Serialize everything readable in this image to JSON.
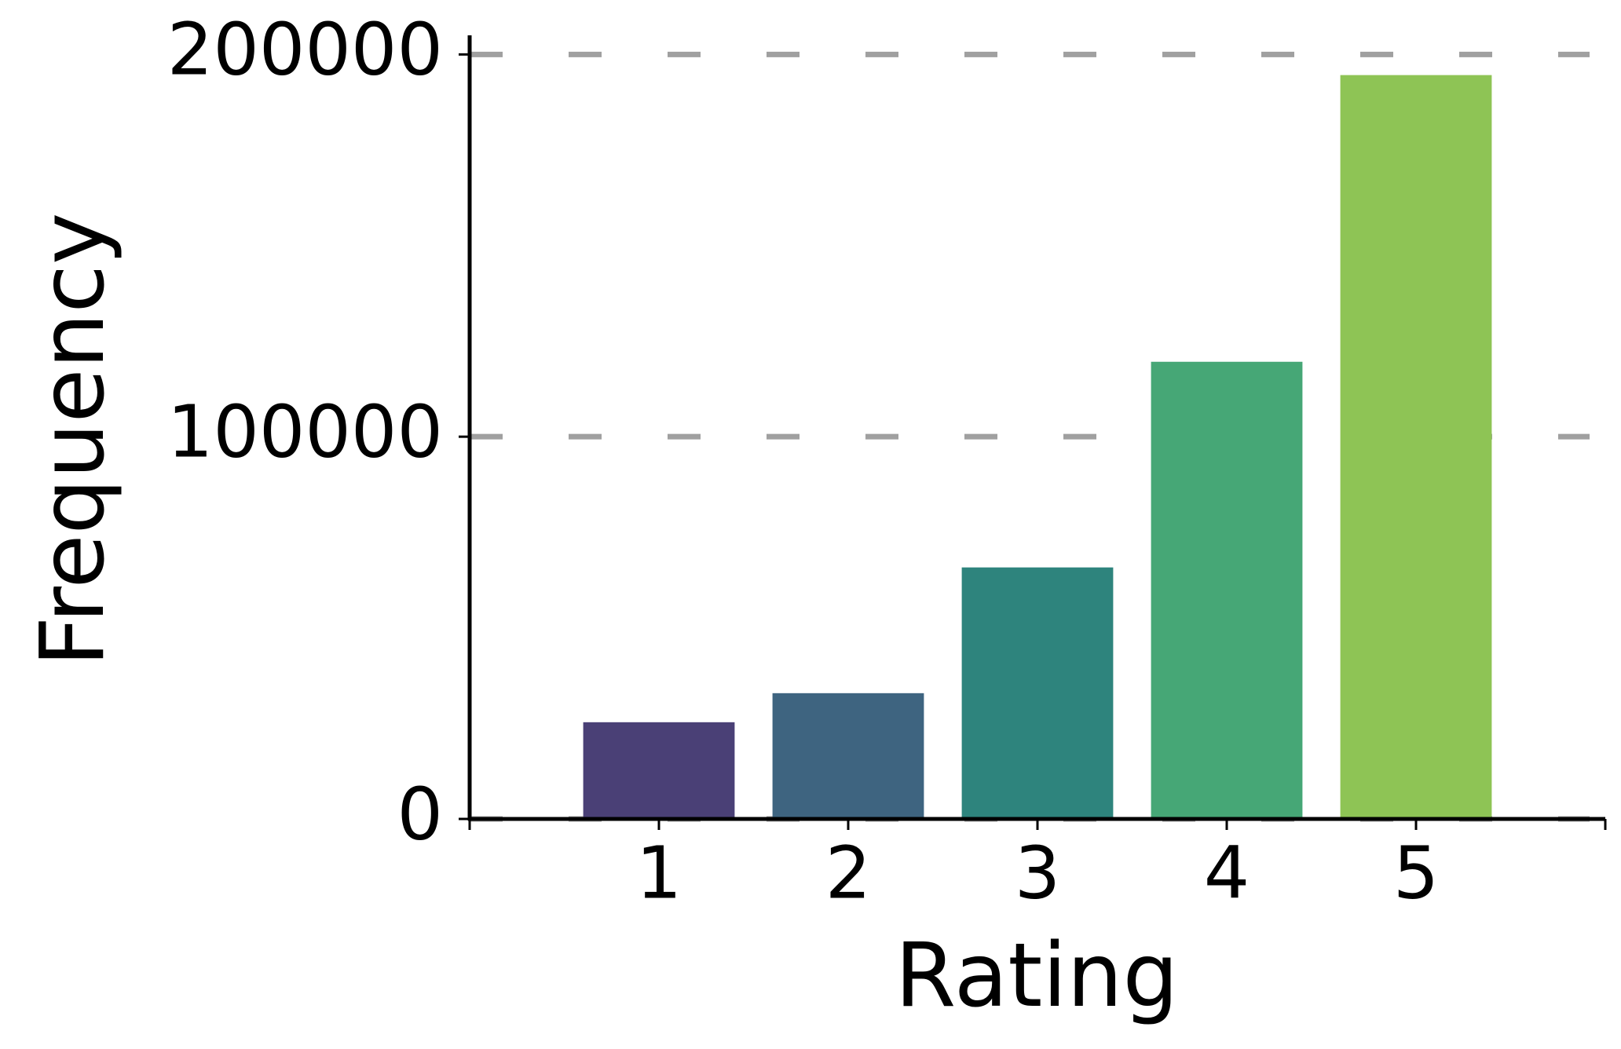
{
  "chart_data": {
    "type": "bar",
    "x_label": "Rating",
    "y_label": "Frequency",
    "x": [
      1,
      2,
      3,
      4,
      5
    ],
    "values": [
      25300,
      32900,
      65800,
      119600,
      194600
    ],
    "colors": [
      "#4a4076",
      "#3e6480",
      "#2e847d",
      "#46a776",
      "#8ec455"
    ],
    "xlim": [
      0,
      6
    ],
    "xticks": [
      1,
      2,
      3,
      4,
      5
    ],
    "ylim": [
      0,
      205000
    ],
    "yticks": [
      0,
      100000,
      200000
    ],
    "grid": true,
    "grid_color": "#a0a0a0"
  }
}
